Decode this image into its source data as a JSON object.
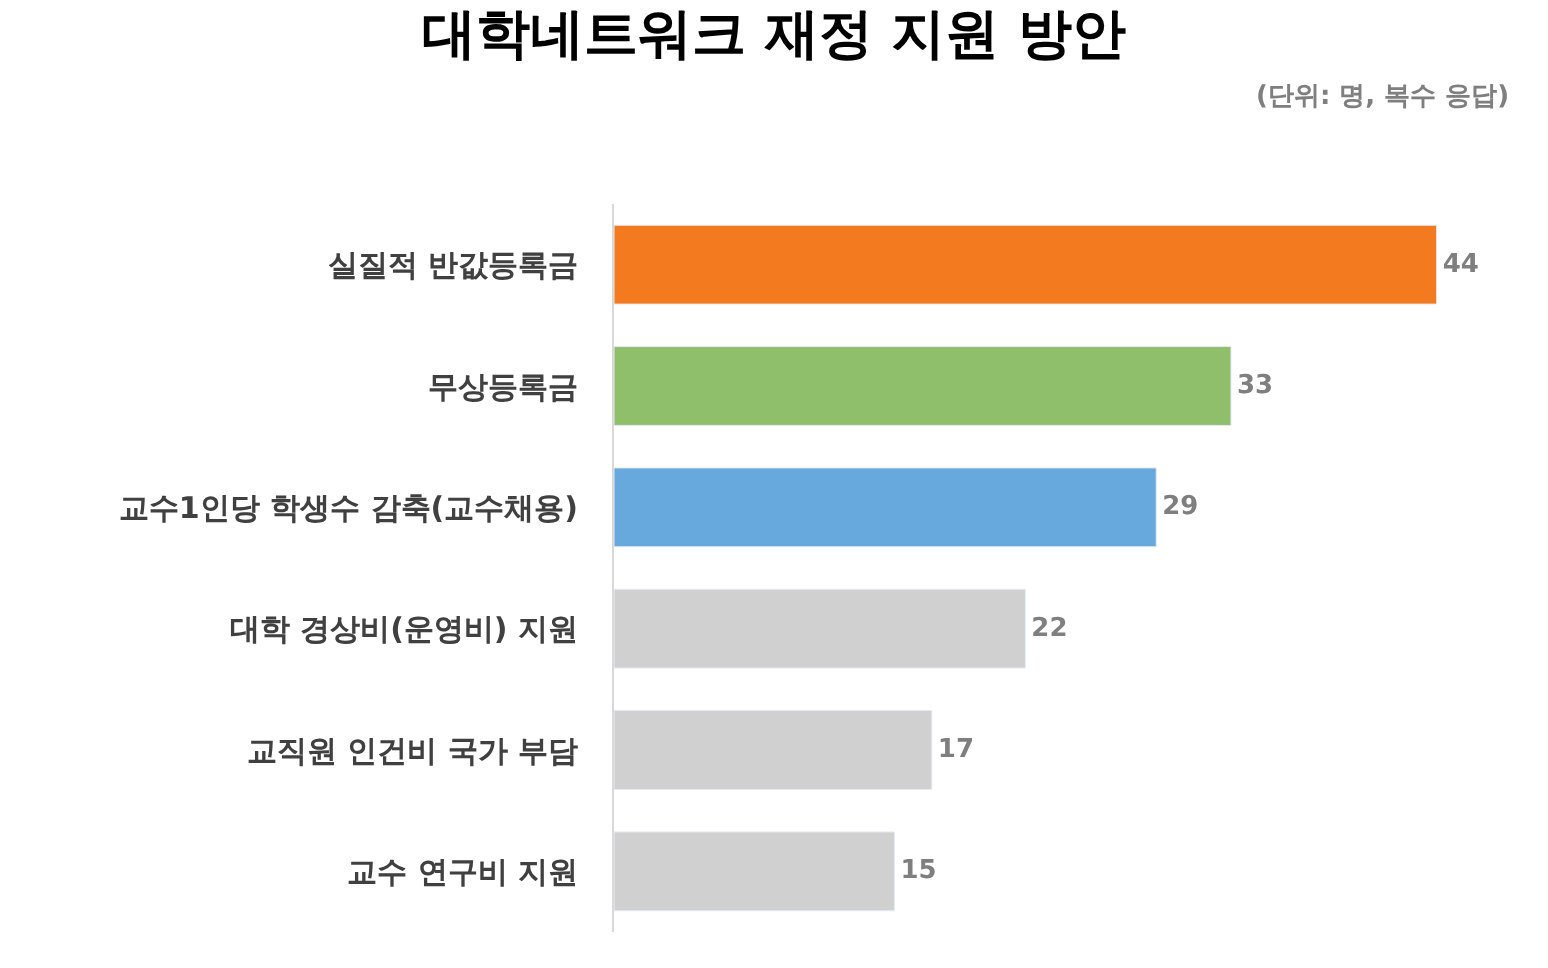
{
  "chart_data": {
    "type": "bar",
    "orientation": "horizontal",
    "title": "대학네트워크 재정 지원 방안",
    "annotations": [
      "(단위: 명, 복수 응답)"
    ],
    "categories": [
      "실질적 반값등록금",
      "무상등록금",
      "교수1인당 학생수 감축(교수채용)",
      "대학 경상비(운영비) 지원",
      "교직원 인건비 국가 부담",
      "교수 연구비 지원"
    ],
    "values": [
      44,
      33,
      29,
      22,
      17,
      15
    ],
    "colors": [
      "#f47a20",
      "#8fbf6b",
      "#67a9dc",
      "#d0d0d0",
      "#d0d0d0",
      "#d0d0d0"
    ],
    "data_labels": true,
    "legend": false,
    "tick_labels": "y"
  }
}
